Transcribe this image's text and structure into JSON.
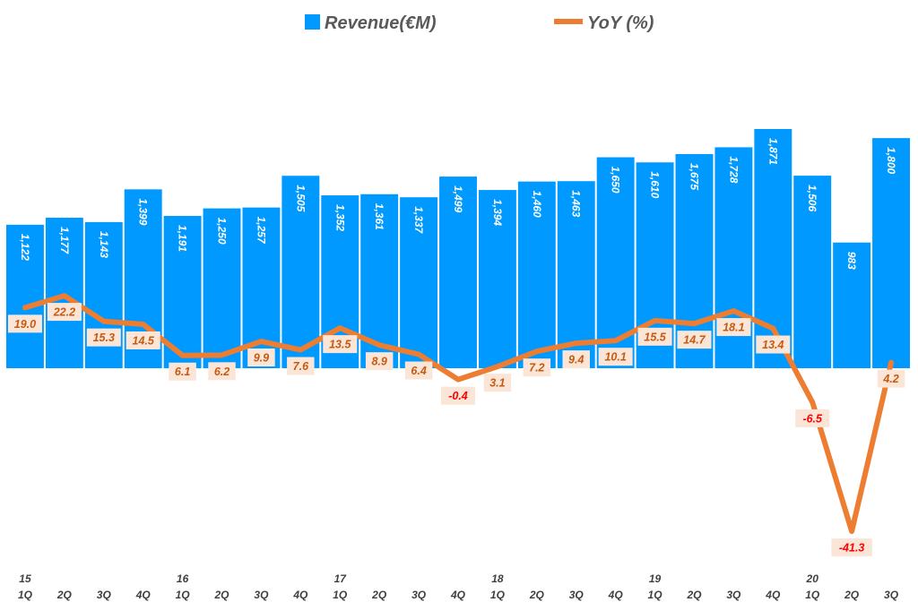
{
  "chart_data": {
    "type": "bar+line",
    "title": "",
    "legend": {
      "placement": "top-center",
      "entries": [
        {
          "name": "Revenue(€M)",
          "marker": "square",
          "color": "#0099ff"
        },
        {
          "name": "YoY (%)",
          "marker": "line",
          "color": "#ed7d31"
        }
      ]
    },
    "categories": [
      "1Q",
      "2Q",
      "3Q",
      "4Q",
      "1Q",
      "2Q",
      "3Q",
      "4Q",
      "1Q",
      "2Q",
      "3Q",
      "4Q",
      "1Q",
      "2Q",
      "3Q",
      "4Q",
      "1Q",
      "2Q",
      "3Q",
      "4Q",
      "1Q",
      "2Q",
      "3Q"
    ],
    "year_labels": [
      "15",
      "",
      "",
      "",
      "16",
      "",
      "",
      "",
      "17",
      "",
      "",
      "",
      "18",
      "",
      "",
      "",
      "19",
      "",
      "",
      "",
      "20",
      "",
      ""
    ],
    "series": [
      {
        "name": "Revenue(€M)",
        "type": "bar",
        "color": "#0099ff",
        "values": [
          1122,
          1177,
          1143,
          1399,
          1191,
          1250,
          1257,
          1505,
          1352,
          1361,
          1337,
          1499,
          1394,
          1460,
          1463,
          1650,
          1610,
          1675,
          1728,
          1871,
          1506,
          983,
          1800
        ],
        "labels": [
          "1,122",
          "1,177",
          "1,143",
          "1,399",
          "1,191",
          "1,250",
          "1,257",
          "1,505",
          "1,352",
          "1,361",
          "1,337",
          "1,499",
          "1,394",
          "1,460",
          "1,463",
          "1,650",
          "1,610",
          "1,675",
          "1,728",
          "1,871",
          "1,506",
          "983",
          "1,800"
        ]
      },
      {
        "name": "YoY (%)",
        "type": "line",
        "color": "#ed7d31",
        "values": [
          19.0,
          22.2,
          15.3,
          14.5,
          6.1,
          6.2,
          9.9,
          7.6,
          13.5,
          8.9,
          6.4,
          -0.4,
          3.1,
          7.2,
          9.4,
          10.1,
          15.5,
          14.7,
          18.1,
          13.4,
          -6.5,
          -41.3,
          4.2
        ],
        "labels": [
          "19.0",
          "22.2",
          "15.3",
          "14.5",
          "6.1",
          "6.2",
          "9.9",
          "7.6",
          "13.5",
          "8.9",
          "6.4",
          "-0.4",
          "3.1",
          "7.2",
          "9.4",
          "10.1",
          "15.5",
          "14.7",
          "18.1",
          "13.4",
          "-6.5",
          "-41.3",
          "4.2"
        ]
      }
    ],
    "label_colors": {
      "positive": "#c55a11",
      "negative": "#ff0000",
      "box": "#fbe5d6"
    },
    "grid": false
  }
}
